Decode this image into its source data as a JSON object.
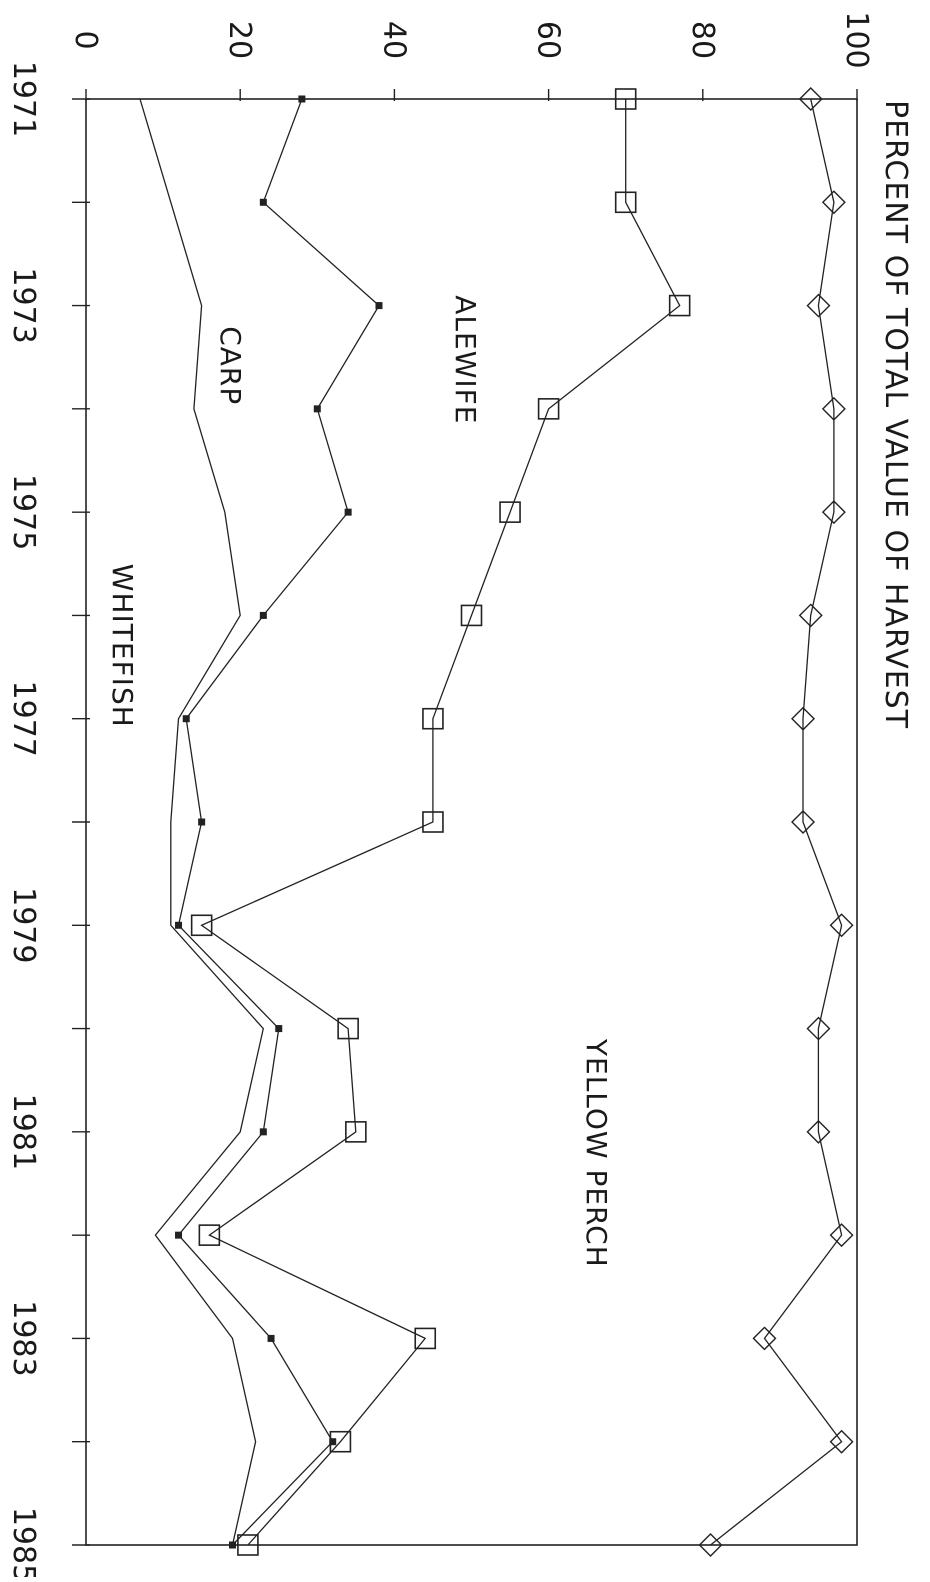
{
  "chart_data": {
    "type": "line",
    "title": "",
    "xlabel": "",
    "ylabel": "PERCENT OF TOTAL VALUE OF HARVEST",
    "x": [
      1971,
      1972,
      1973,
      1974,
      1975,
      1976,
      1977,
      1978,
      1979,
      1980,
      1981,
      1982,
      1983,
      1984,
      1985
    ],
    "x_tick_labels": [
      "1971",
      "1973",
      "1975",
      "1977",
      "1979",
      "1981",
      "1983",
      "1985"
    ],
    "y_tick_labels": [
      "0",
      "20",
      "40",
      "60",
      "80",
      "100"
    ],
    "xlim": [
      1971,
      1985
    ],
    "ylim": [
      0,
      100
    ],
    "grid": false,
    "legend": "none",
    "series": [
      {
        "marker": "none",
        "values": [
          7,
          11,
          15,
          14,
          18,
          20,
          12,
          11,
          11,
          23,
          20,
          9,
          19,
          22,
          19
        ]
      },
      {
        "marker": "dot",
        "values": [
          28,
          23,
          38,
          30,
          34,
          23,
          13,
          15,
          12,
          25,
          23,
          12,
          24,
          32,
          19
        ]
      },
      {
        "marker": "square",
        "values": [
          70,
          70,
          77,
          60,
          55,
          50,
          45,
          45,
          15,
          34,
          35,
          16,
          44,
          33,
          21
        ]
      },
      {
        "marker": "diamond",
        "values": [
          94,
          97,
          95,
          97,
          97,
          94,
          93,
          93,
          98,
          95,
          95,
          98,
          88,
          98,
          81
        ]
      }
    ],
    "annotations": [
      {
        "text": "WHITEFISH",
        "x": 1975.5,
        "y": 3.5
      },
      {
        "text": "CARP",
        "x": 1973.2,
        "y": 17.5
      },
      {
        "text": "ALEWIFE",
        "x": 1972.9,
        "y": 48
      },
      {
        "text": "YELLOW PERCH",
        "x": 1980.1,
        "y": 65
      }
    ]
  }
}
